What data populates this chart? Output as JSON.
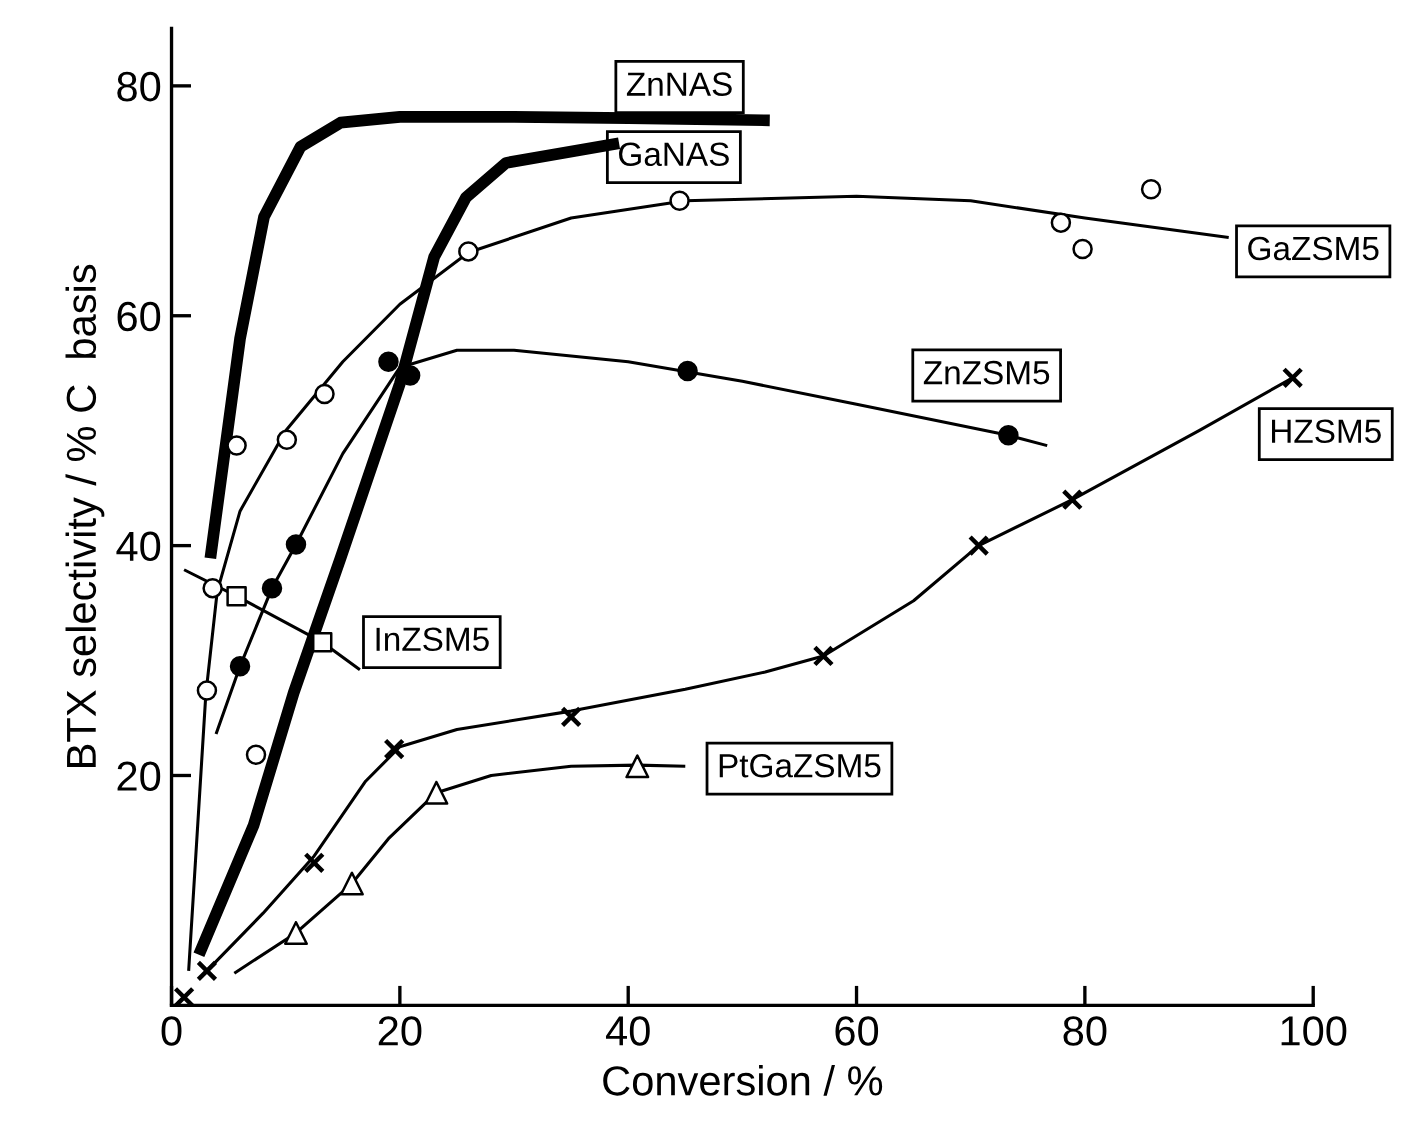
{
  "chart_data": {
    "type": "line",
    "xlabel": "Conversion / %",
    "ylabel": "BTX selectivity / % C  basis",
    "xlim": [
      0,
      100
    ],
    "ylim": [
      0,
      85
    ],
    "xticks": [
      0,
      20,
      40,
      60,
      80,
      100
    ],
    "yticks": [
      20,
      40,
      60,
      80
    ],
    "grid": false,
    "marker": "none",
    "line_style": "solid",
    "series": [
      {
        "name": "ZnNAS",
        "color": "#000000",
        "x": [
          3.4,
          6.0,
          8.1,
          11.3,
          14.8,
          20,
          30,
          40,
          52.4
        ],
        "values": [
          38.9,
          58,
          68.6,
          74.7,
          76.8,
          77.3,
          77.3,
          77.2,
          77.0
        ]
      },
      {
        "name": "GaNAS",
        "color": "#000000",
        "x": [
          2.4,
          7.2,
          10.7,
          14.8,
          20,
          23.0,
          25.8,
          29.3,
          39.2
        ],
        "values": [
          4.4,
          15.7,
          27.2,
          38.9,
          54.1,
          65.1,
          70.3,
          73.3,
          75.0
        ]
      },
      {
        "name": "GaZSM5",
        "color": "#000000",
        "x": [
          1.5,
          3,
          4,
          6,
          10,
          15,
          20,
          26,
          35,
          45,
          60,
          70,
          80,
          92.6
        ],
        "values": [
          3,
          27,
          36,
          43,
          50,
          56,
          61,
          65.5,
          68.5,
          70,
          70.4,
          70,
          68.5,
          66.8
        ]
      },
      {
        "type": "scatter",
        "marker": "circle",
        "color": "#ffffff",
        "x": [
          3.1,
          3.6,
          5.7,
          7.4,
          10.1,
          13.4,
          26.0,
          44.5,
          77.9,
          79.8,
          85.8
        ],
        "values": [
          27.4,
          36.3,
          48.7,
          21.8,
          49.2,
          53.2,
          65.6,
          70.0,
          68.1,
          65.8,
          71.0
        ]
      },
      {
        "name": "ZnZSM5",
        "color": "#000000",
        "x": [
          3.9,
          6.0,
          8.8,
          10.9,
          15,
          20,
          25,
          30,
          40,
          50,
          60,
          73.3,
          76.7
        ],
        "values": [
          23.6,
          29.5,
          36.3,
          40.1,
          48,
          55.5,
          57,
          57,
          56,
          54.3,
          52.3,
          49.6,
          48.7
        ]
      },
      {
        "type": "scatter",
        "marker": "circle",
        "color": "#000000",
        "x": [
          6.0,
          8.8,
          10.9,
          19.0,
          20.9,
          45.2,
          73.3
        ],
        "values": [
          29.5,
          36.3,
          40.1,
          56.0,
          54.8,
          55.2,
          49.6
        ]
      },
      {
        "name": "InZSM5",
        "color": "#000000",
        "x": [
          1.1,
          5.7,
          13.2,
          16.5
        ],
        "values": [
          37.9,
          35.6,
          31.6,
          29.2
        ]
      },
      {
        "type": "scatter",
        "marker": "square",
        "color": "#ffffff",
        "x": [
          5.7,
          13.2
        ],
        "values": [
          35.6,
          31.6
        ]
      },
      {
        "name": "HZSM5",
        "color": "#000000",
        "x": [
          3.1,
          8,
          12.5,
          17,
          20,
          25,
          35,
          45,
          52,
          57.1,
          65,
          70.7,
          78.9,
          90,
          98.2
        ],
        "values": [
          3.0,
          8,
          13,
          19.5,
          22.5,
          24,
          25.6,
          27.5,
          29,
          30.4,
          35.2,
          40.0,
          44.0,
          50,
          54.6
        ]
      },
      {
        "type": "scatter",
        "marker": "cross",
        "color": "#000000",
        "x": [
          1.1,
          3.1,
          12.5,
          19.5,
          35.0,
          57.1,
          70.7,
          78.9,
          98.2
        ],
        "values": [
          0.7,
          3.0,
          12.4,
          22.3,
          25.1,
          30.4,
          40.0,
          44.0,
          54.6
        ]
      },
      {
        "name": "PtGaZSM5",
        "color": "#000000",
        "x": [
          5.5,
          10.9,
          15.8,
          19,
          23.2,
          28,
          35,
          40.8,
          45
        ],
        "values": [
          2.8,
          6.3,
          10.6,
          14.5,
          18.5,
          20,
          20.8,
          20.9,
          20.8
        ]
      },
      {
        "type": "scatter",
        "marker": "triangle",
        "color": "#ffffff",
        "x": [
          10.9,
          15.8,
          23.2,
          40.8
        ],
        "values": [
          6.3,
          10.6,
          18.5,
          20.8
        ]
      }
    ]
  }
}
